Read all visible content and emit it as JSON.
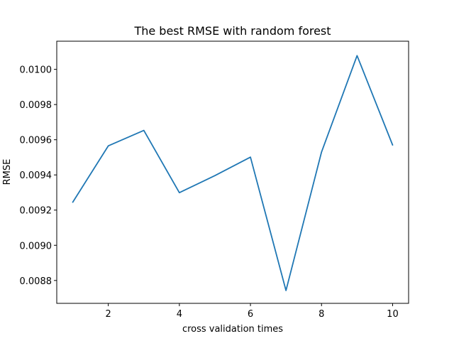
{
  "chart_data": {
    "type": "line",
    "title": "The best RMSE with random forest",
    "xlabel": "cross validation times",
    "ylabel": "RMSE",
    "xlim": [
      0.55,
      10.45
    ],
    "ylim": [
      0.00867,
      0.01016
    ],
    "xticks": [
      2,
      4,
      6,
      8,
      10
    ],
    "xtick_labels": [
      "2",
      "4",
      "6",
      "8",
      "10"
    ],
    "yticks": [
      0.0088,
      0.009,
      0.0092,
      0.0094,
      0.0096,
      0.0098,
      0.01
    ],
    "ytick_labels": [
      "0.0088",
      "0.0090",
      "0.0092",
      "0.0094",
      "0.0096",
      "0.0098",
      "0.0100"
    ],
    "grid": false,
    "series": [
      {
        "color": "#1f77b4",
        "x": [
          1,
          2,
          3,
          4,
          5,
          6,
          7,
          8,
          9,
          10
        ],
        "y": [
          0.009245,
          0.009565,
          0.009653,
          0.009299,
          0.009396,
          0.009501,
          0.008743,
          0.00953,
          0.010078,
          0.00957
        ]
      }
    ]
  }
}
